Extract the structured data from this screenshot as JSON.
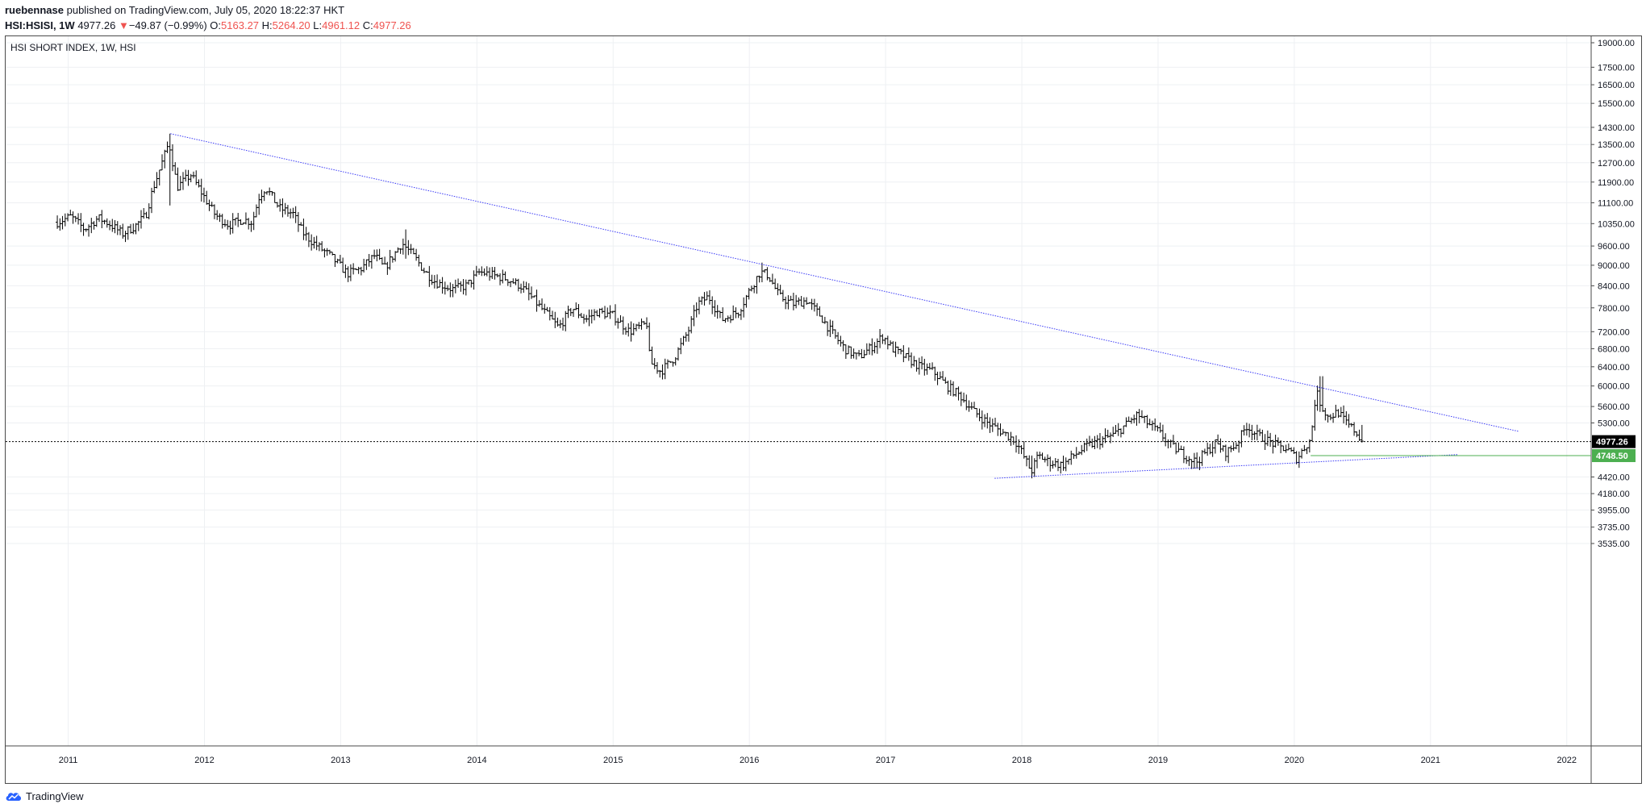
{
  "header": {
    "author": "ruebennase",
    "published_text": "published on TradingView.com, July 05, 2020 18:22:37 HKT",
    "symbol": "HSI:HSISI, 1W",
    "last": "4977.26",
    "change_arrow": "▼",
    "change": "−49.87 (−0.99%)",
    "open_label": "O:",
    "open": "5163.27",
    "high_label": "H:",
    "high": "5264.20",
    "low_label": "L:",
    "low": "4961.12",
    "close_label": "C:",
    "close": "4977.26"
  },
  "footer": {
    "brand": "TradingView",
    "logo_icon": "tradingview-cloud-icon"
  },
  "colors": {
    "neg": "#ef5350",
    "trend": "#3b3bf6",
    "support": "#4caf50",
    "bars": "#000000",
    "grid": "#eef0f3"
  },
  "chart_data": {
    "type": "ohlc",
    "title": "HSI SHORT INDEX, 1W, HSI",
    "x_ticks": [
      "2011",
      "2012",
      "2013",
      "2014",
      "2015",
      "2016",
      "2017",
      "2018",
      "2019",
      "2020",
      "2021",
      "2022"
    ],
    "y_ticks": [
      19000,
      17500,
      16500,
      15500,
      14300,
      13500,
      12700,
      11900,
      11100,
      10350,
      9600,
      9000,
      8400,
      7800,
      7200,
      6800,
      6400,
      6000,
      5600,
      5300,
      4977.26,
      4748.5,
      4420,
      4180,
      3955,
      3735,
      3535
    ],
    "y_tick_labels": [
      "19000.00",
      "17500.00",
      "16500.00",
      "15500.00",
      "14300.00",
      "13500.00",
      "12700.00",
      "11900.00",
      "11100.00",
      "10350.00",
      "9600.00",
      "9000.00",
      "8400.00",
      "7800.00",
      "7200.00",
      "6800.00",
      "6400.00",
      "6000.00",
      "5600.00",
      "5300.00",
      "4977.26",
      "4748.50",
      "4420.00",
      "4180.00",
      "3955.00",
      "3735.00",
      "3535.00"
    ],
    "y_scale": "log",
    "ylim": [
      3500,
      20500
    ],
    "xlim": [
      2010.0,
      2022.2
    ],
    "price_path": [
      [
        2010.92,
        10400
      ],
      [
        2011.02,
        10600
      ],
      [
        2011.12,
        10150
      ],
      [
        2011.22,
        10550
      ],
      [
        2011.3,
        10350
      ],
      [
        2011.4,
        10000
      ],
      [
        2011.5,
        10300
      ],
      [
        2011.57,
        10650
      ],
      [
        2011.62,
        11600
      ],
      [
        2011.7,
        12900
      ],
      [
        2011.74,
        13600
      ],
      [
        2011.8,
        11700
      ],
      [
        2011.9,
        12200
      ],
      [
        2012.0,
        11300
      ],
      [
        2012.08,
        10650
      ],
      [
        2012.18,
        10300
      ],
      [
        2012.28,
        10500
      ],
      [
        2012.35,
        10400
      ],
      [
        2012.4,
        11300
      ],
      [
        2012.45,
        11700
      ],
      [
        2012.55,
        10900
      ],
      [
        2012.65,
        10700
      ],
      [
        2012.72,
        10050
      ],
      [
        2012.8,
        9700
      ],
      [
        2012.92,
        9300
      ],
      [
        2013.05,
        8750
      ],
      [
        2013.15,
        8900
      ],
      [
        2013.25,
        9300
      ],
      [
        2013.32,
        8900
      ],
      [
        2013.45,
        9700
      ],
      [
        2013.55,
        9200
      ],
      [
        2013.62,
        8800
      ],
      [
        2013.7,
        8500
      ],
      [
        2013.82,
        8300
      ],
      [
        2013.92,
        8400
      ],
      [
        2014.02,
        8800
      ],
      [
        2014.12,
        8700
      ],
      [
        2014.22,
        8600
      ],
      [
        2014.32,
        8400
      ],
      [
        2014.42,
        8000
      ],
      [
        2014.52,
        7600
      ],
      [
        2014.6,
        7300
      ],
      [
        2014.7,
        7800
      ],
      [
        2014.8,
        7500
      ],
      [
        2014.88,
        7700
      ],
      [
        2015.0,
        7600
      ],
      [
        2015.12,
        7200
      ],
      [
        2015.25,
        7400
      ],
      [
        2015.27,
        6500
      ],
      [
        2015.35,
        6300
      ],
      [
        2015.45,
        6600
      ],
      [
        2015.55,
        7200
      ],
      [
        2015.62,
        7900
      ],
      [
        2015.7,
        8100
      ],
      [
        2015.8,
        7500
      ],
      [
        2015.92,
        7700
      ],
      [
        2016.02,
        8400
      ],
      [
        2016.08,
        8800
      ],
      [
        2016.14,
        8700
      ],
      [
        2016.22,
        8100
      ],
      [
        2016.32,
        7900
      ],
      [
        2016.42,
        8000
      ],
      [
        2016.52,
        7600
      ],
      [
        2016.6,
        7200
      ],
      [
        2016.7,
        6800
      ],
      [
        2016.8,
        6600
      ],
      [
        2016.92,
        6900
      ],
      [
        2016.98,
        7100
      ],
      [
        2017.05,
        6800
      ],
      [
        2017.15,
        6600
      ],
      [
        2017.25,
        6400
      ],
      [
        2017.35,
        6300
      ],
      [
        2017.45,
        6000
      ],
      [
        2017.55,
        5800
      ],
      [
        2017.65,
        5500
      ],
      [
        2017.75,
        5300
      ],
      [
        2017.85,
        5150
      ],
      [
        2017.95,
        5000
      ],
      [
        2018.0,
        4800
      ],
      [
        2018.07,
        4500
      ],
      [
        2018.12,
        4750
      ],
      [
        2018.2,
        4650
      ],
      [
        2018.3,
        4600
      ],
      [
        2018.38,
        4750
      ],
      [
        2018.48,
        4900
      ],
      [
        2018.58,
        5000
      ],
      [
        2018.68,
        5100
      ],
      [
        2018.78,
        5300
      ],
      [
        2018.85,
        5450
      ],
      [
        2018.92,
        5300
      ],
      [
        2019.0,
        5150
      ],
      [
        2019.1,
        4900
      ],
      [
        2019.2,
        4750
      ],
      [
        2019.28,
        4650
      ],
      [
        2019.35,
        4800
      ],
      [
        2019.42,
        4950
      ],
      [
        2019.5,
        4800
      ],
      [
        2019.58,
        4950
      ],
      [
        2019.65,
        5250
      ],
      [
        2019.72,
        5100
      ],
      [
        2019.8,
        5000
      ],
      [
        2019.88,
        4900
      ],
      [
        2019.95,
        4850
      ],
      [
        2020.02,
        4700
      ],
      [
        2020.08,
        4900
      ],
      [
        2020.12,
        5000
      ],
      [
        2020.16,
        5900
      ],
      [
        2020.2,
        5600
      ],
      [
        2020.25,
        5400
      ],
      [
        2020.32,
        5500
      ],
      [
        2020.38,
        5300
      ],
      [
        2020.45,
        5150
      ],
      [
        2020.5,
        4977
      ]
    ],
    "swing_extremes": [
      {
        "t": 2011.74,
        "h": 14000,
        "l": 11000
      },
      {
        "t": 2013.47,
        "h": 10150,
        "l": 9200
      },
      {
        "t": 2015.33,
        "h": 6500,
        "l": 6250
      },
      {
        "t": 2016.1,
        "h": 9080,
        "l": 8500
      },
      {
        "t": 2018.07,
        "h": 4750,
        "l": 4400
      },
      {
        "t": 2019.28,
        "h": 4800,
        "l": 4550
      },
      {
        "t": 2020.2,
        "h": 6200,
        "l": 5500
      },
      {
        "t": 2020.5,
        "h": 5264.2,
        "l": 4961.12
      }
    ],
    "trendlines": [
      {
        "name": "resistance",
        "from": [
          2011.75,
          14000
        ],
        "to": [
          2021.65,
          5150
        ],
        "style": "dotted",
        "color": "#3b3bf6"
      },
      {
        "name": "support",
        "from": [
          2017.8,
          4400
        ],
        "to": [
          2021.2,
          4765
        ],
        "style": "dotted",
        "color": "#3b3bf6"
      }
    ],
    "horizontal_lines": [
      {
        "name": "last-price",
        "value": 4977.26,
        "label": "4977.26",
        "style": "dotted",
        "color": "#000000"
      },
      {
        "name": "support-level",
        "value": 4748.5,
        "label": "4748.50",
        "from_t": 2020.12,
        "style": "solid",
        "color": "#4caf50"
      }
    ],
    "grid": true
  }
}
